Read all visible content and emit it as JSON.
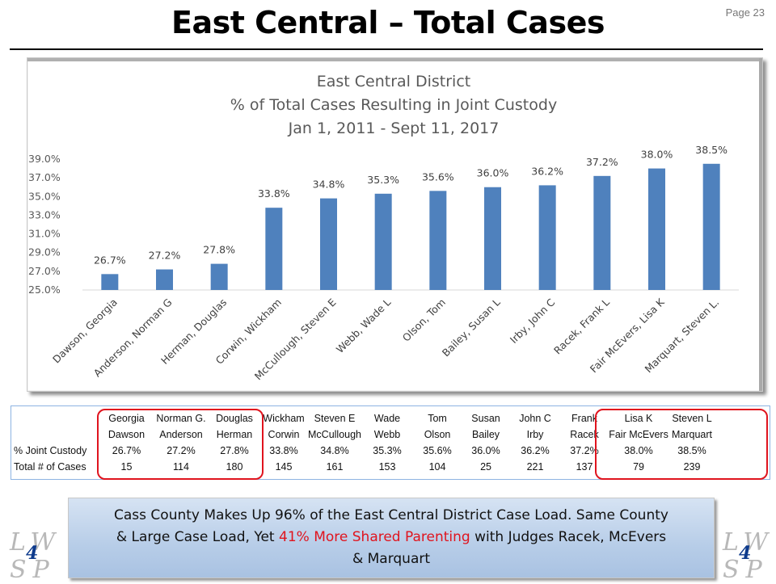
{
  "slide": {
    "title": "East Central – Total Cases",
    "page": "Page 23"
  },
  "chart_data": {
    "type": "bar",
    "title": [
      "East Central District",
      "% of Total Cases Resulting  in Joint Custody",
      "Jan 1, 2011 - Sept 11, 2017"
    ],
    "categories": [
      "Dawson, Georgia",
      "Anderson, Norman G",
      "Herman, Douglas",
      "Corwin, Wickham",
      "McCullough, Steven E",
      "Webb, Wade L",
      "Olson, Tom",
      "Bailey, Susan L",
      "Irby, John C",
      "Racek, Frank L",
      "Fair McEvers, Lisa K",
      "Marquart, Steven L."
    ],
    "values": [
      26.7,
      27.2,
      27.8,
      33.8,
      34.8,
      35.3,
      35.6,
      36.0,
      36.2,
      37.2,
      38.0,
      38.5
    ],
    "data_labels": [
      "26.7%",
      "27.2%",
      "27.8%",
      "33.8%",
      "34.8%",
      "35.3%",
      "35.6%",
      "36.0%",
      "36.2%",
      "37.2%",
      "38.0%",
      "38.5%"
    ],
    "yticks": [
      "25.0%",
      "27.0%",
      "29.0%",
      "31.0%",
      "33.0%",
      "35.0%",
      "37.0%",
      "39.0%"
    ],
    "ylim": [
      25,
      39
    ],
    "bar_color": "#4f81bd",
    "grid": false
  },
  "table": {
    "first_names": [
      "Georgia",
      "Norman G.",
      "Douglas",
      "Wickham",
      "Steven E",
      "Wade",
      "Tom",
      "Susan",
      "John C",
      "Frank",
      "Lisa K",
      "Steven L"
    ],
    "last_names": [
      "Dawson",
      "Anderson",
      "Herman",
      "Corwin",
      "McCullough",
      "Webb",
      "Olson",
      "Bailey",
      "Irby",
      "Racek",
      "Fair McEvers",
      "Marquart"
    ],
    "row_joint_label": "% Joint Custody",
    "joint_custody": [
      "26.7%",
      "27.2%",
      "27.8%",
      "33.8%",
      "34.8%",
      "35.3%",
      "35.6%",
      "36.0%",
      "36.2%",
      "37.2%",
      "38.0%",
      "38.5%"
    ],
    "row_cases_label": "Total # of Cases",
    "total_cases": [
      "15",
      "114",
      "180",
      "145",
      "161",
      "153",
      "104",
      "25",
      "221",
      "137",
      "79",
      "239"
    ],
    "highlight_color": "#e0141e"
  },
  "note": {
    "line1": "Cass County Makes Up 96% of the East Central District Case Load. Same County",
    "line2_a": "& Large Case Load, Yet ",
    "line2_hl": "41% More Shared Parenting",
    "line2_b": " with Judges Racek, McEvers",
    "line3": "& Marquart"
  },
  "logo": {
    "top": "LW",
    "bottom": "SP",
    "number": "4"
  }
}
